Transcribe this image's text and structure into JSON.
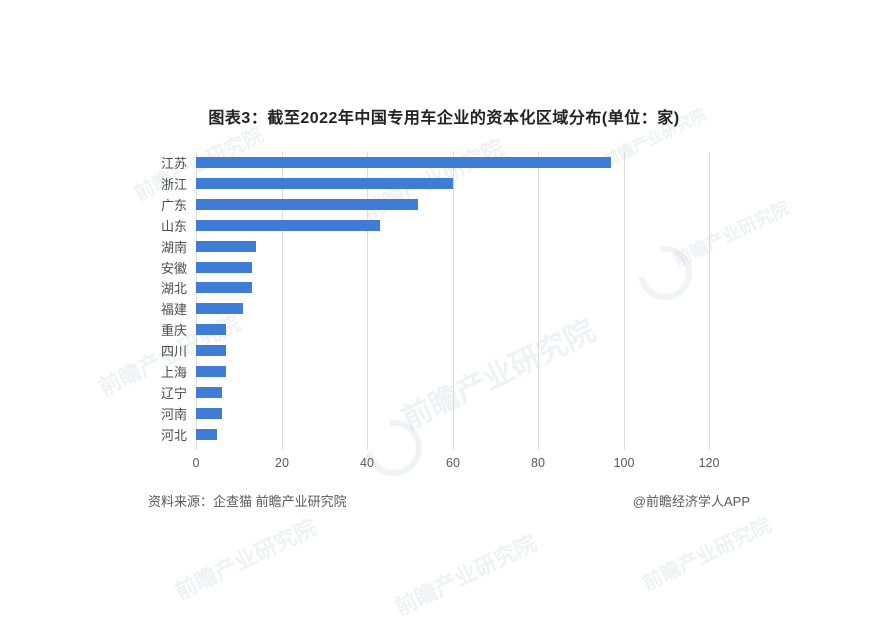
{
  "title": "图表3：截至2022年中国专用车企业的资本化区域分布(单位：家)",
  "footer": {
    "source": "资料来源：企查猫 前瞻产业研究院",
    "credit": "@前瞻经济学人APP"
  },
  "watermark": {
    "text": "前瞻产业研究院"
  },
  "chart_data": {
    "type": "bar",
    "orientation": "horizontal",
    "title": "图表3：截至2022年中国专用车企业的资本化区域分布(单位：家)",
    "categories": [
      "江苏",
      "浙江",
      "广东",
      "山东",
      "湖南",
      "安徽",
      "湖北",
      "福建",
      "重庆",
      "四川",
      "上海",
      "辽宁",
      "河南",
      "河北"
    ],
    "values": [
      97,
      60,
      52,
      43,
      14,
      13,
      13,
      11,
      7,
      7,
      7,
      6,
      6,
      5
    ],
    "xlabel": "",
    "ylabel": "",
    "xlim": [
      0,
      120
    ],
    "xticks": [
      0,
      20,
      40,
      60,
      80,
      100,
      120
    ],
    "unit": "家",
    "bar_color": "#3e7cd6",
    "gridline_color": "#dcdcdc",
    "grid": "vertical",
    "legend": null
  }
}
